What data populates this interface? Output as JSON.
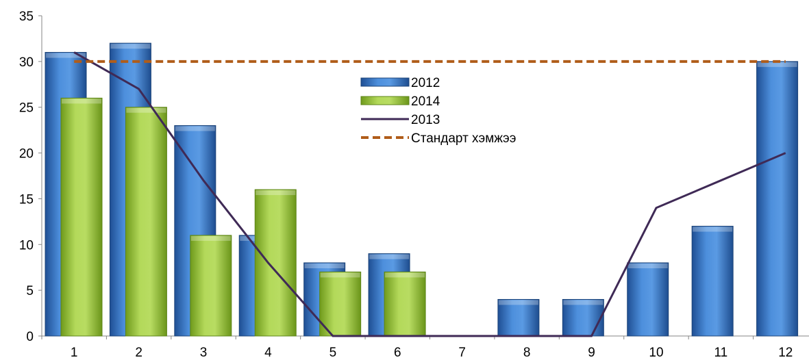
{
  "chart_data": {
    "type": "bar",
    "categories": [
      "1",
      "2",
      "3",
      "4",
      "5",
      "6",
      "7",
      "8",
      "9",
      "10",
      "11",
      "12"
    ],
    "y_ticks": [
      "0",
      "5",
      "10",
      "15",
      "20",
      "25",
      "30",
      "35"
    ],
    "ylim": [
      0,
      35
    ],
    "grid": false,
    "legend_position": "top-center",
    "series": [
      {
        "name": "2012",
        "kind": "bar",
        "color": "#3a78c4",
        "values": [
          31,
          32,
          23,
          11,
          8,
          9,
          0,
          4,
          4,
          8,
          12,
          30
        ]
      },
      {
        "name": "2014",
        "kind": "bar",
        "color": "#9dc43d",
        "values": [
          26,
          25,
          11,
          16,
          7,
          7,
          0,
          0,
          0,
          0,
          0,
          0
        ]
      },
      {
        "name": "2013",
        "kind": "line",
        "color": "#3f2a56",
        "values": [
          31,
          27,
          17,
          8,
          0,
          0,
          0,
          0,
          0,
          14,
          17,
          20
        ]
      },
      {
        "name": "Стандарт хэмжээ",
        "kind": "dashed-line",
        "color": "#b05d1a",
        "values": [
          30,
          30,
          30,
          30,
          30,
          30,
          30,
          30,
          30,
          30,
          30,
          30
        ]
      }
    ]
  }
}
